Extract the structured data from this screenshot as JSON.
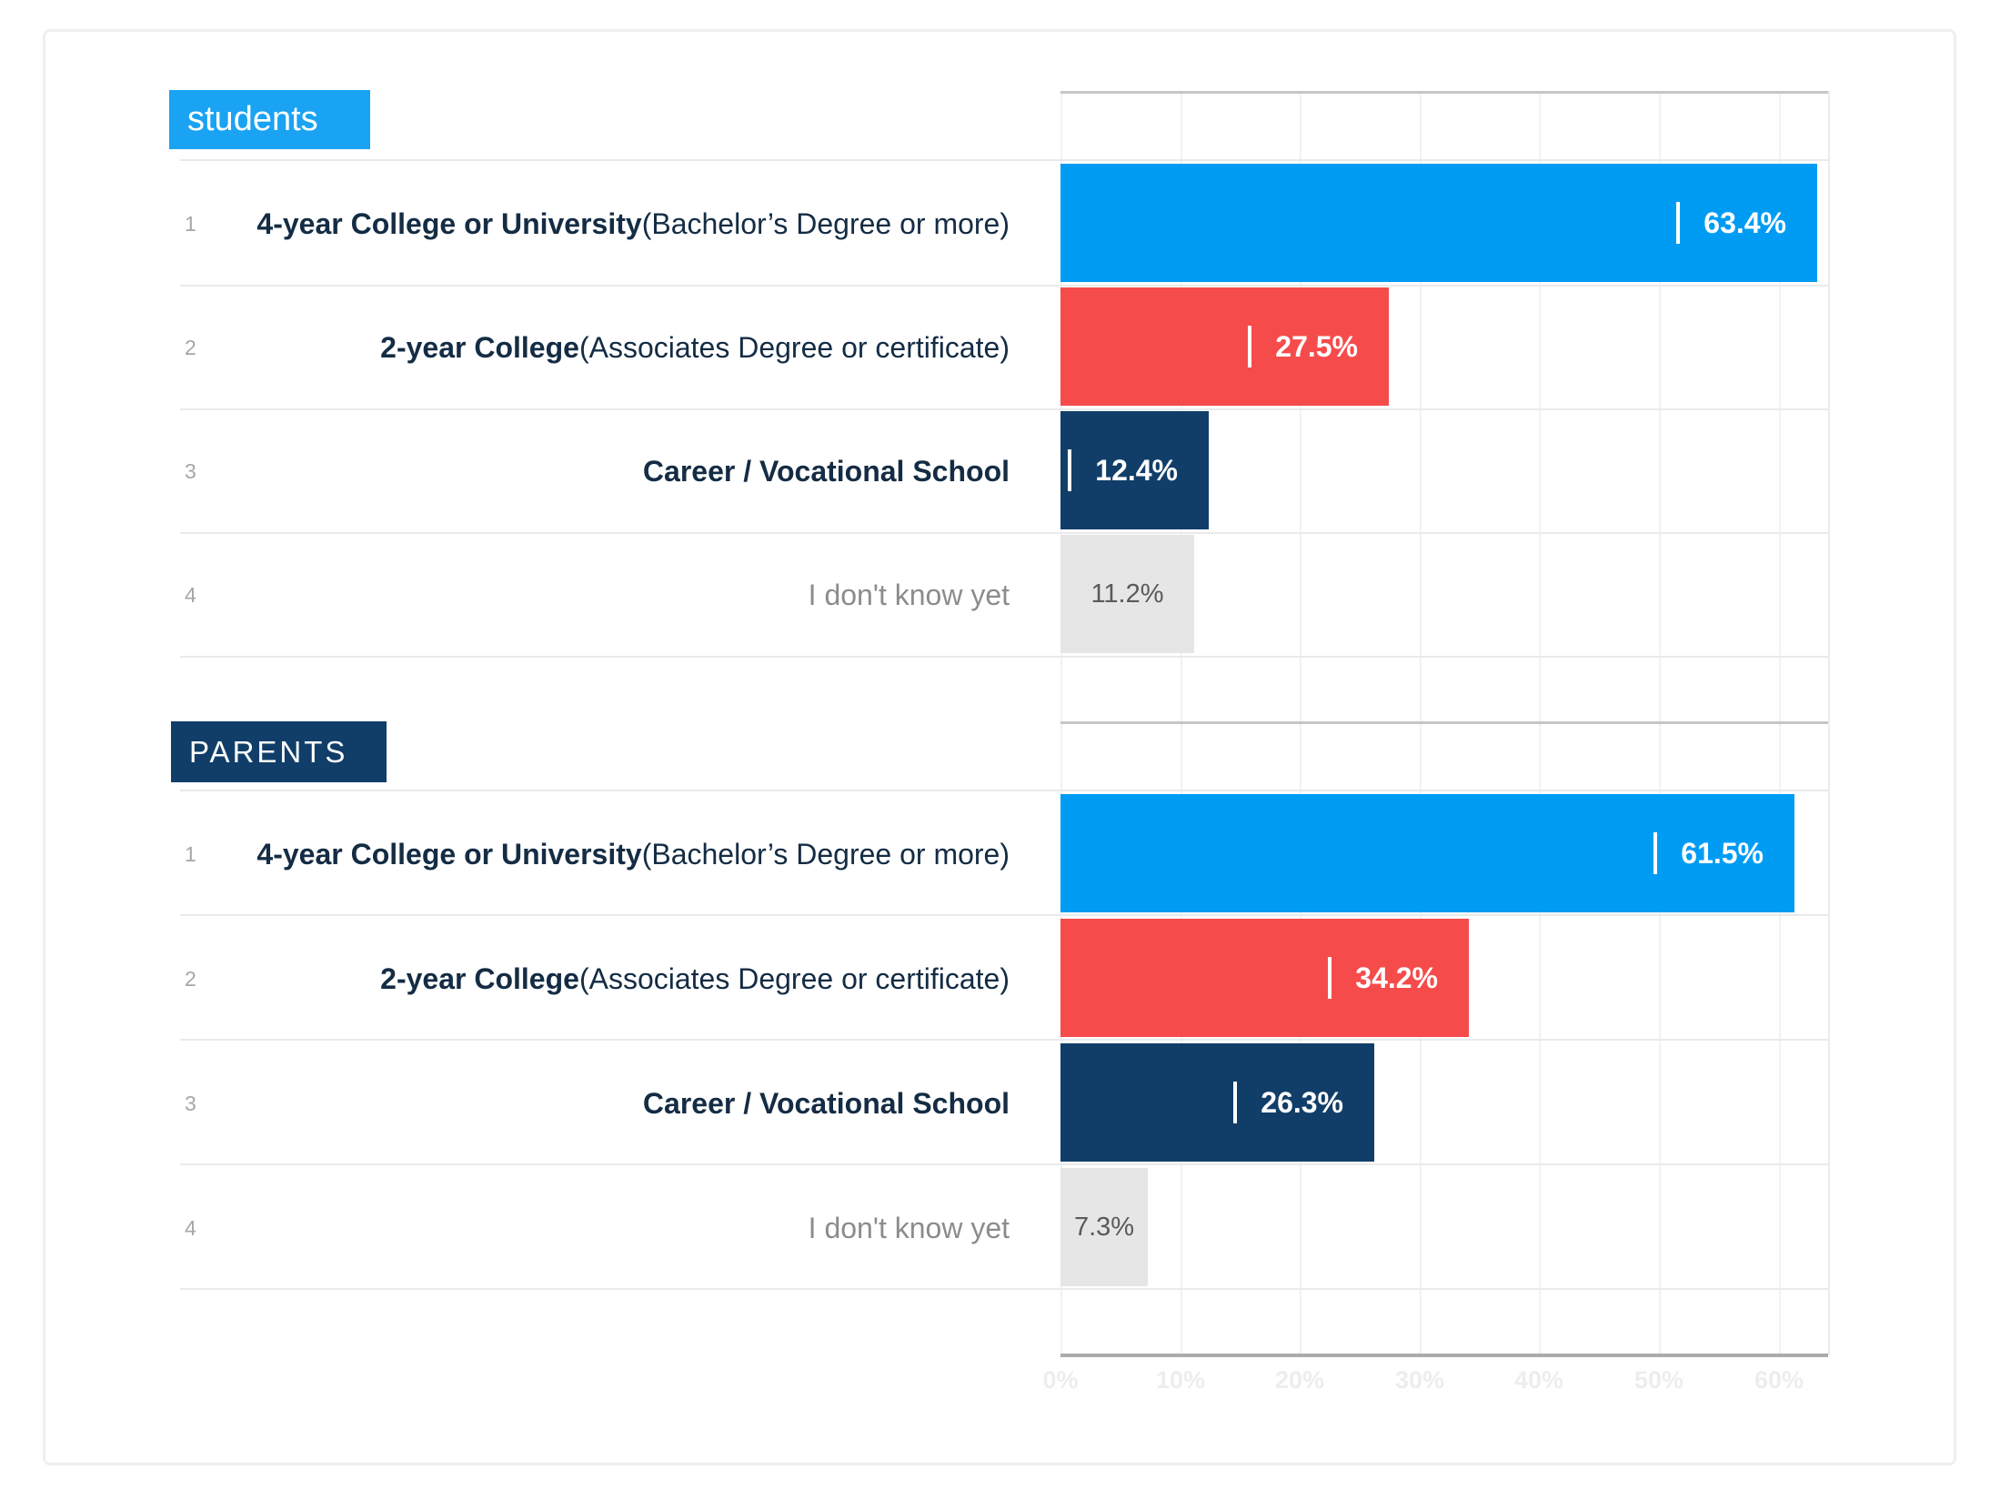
{
  "sections": [
    {
      "header": "students",
      "header_bg": "#1aa3f2",
      "rows": [
        {
          "num": "1",
          "bold": "4-year College or University",
          "rest": " (Bachelor’s Degree or more)",
          "value": 63.4,
          "value_label": "63.4%",
          "color": "#009cf4",
          "muted": false
        },
        {
          "num": "2",
          "bold": "2-year College",
          "rest": " (Associates Degree or certificate)",
          "value": 27.5,
          "value_label": "27.5%",
          "color": "#f64b4b",
          "muted": false
        },
        {
          "num": "3",
          "bold": "Career / Vocational School",
          "rest": "",
          "value": 12.4,
          "value_label": "12.4%",
          "color": "#113e68",
          "muted": false
        },
        {
          "num": "4",
          "bold": "",
          "rest": "I don't know yet",
          "value": 11.2,
          "value_label": "11.2%",
          "color": "#e6e6e6",
          "muted": true
        }
      ]
    },
    {
      "header": "PARENTS",
      "header_bg": "#113e68",
      "rows": [
        {
          "num": "1",
          "bold": "4-year College or University",
          "rest": " (Bachelor’s Degree or more)",
          "value": 61.5,
          "value_label": "61.5%",
          "color": "#009cf4",
          "muted": false
        },
        {
          "num": "2",
          "bold": "2-year College",
          "rest": " (Associates Degree or certificate)",
          "value": 34.2,
          "value_label": "34.2%",
          "color": "#f64b4b",
          "muted": false
        },
        {
          "num": "3",
          "bold": "Career / Vocational School",
          "rest": "",
          "value": 26.3,
          "value_label": "26.3%",
          "color": "#113e68",
          "muted": false
        },
        {
          "num": "4",
          "bold": "",
          "rest": "I don't know yet",
          "value": 7.3,
          "value_label": "7.3%",
          "color": "#e6e6e6",
          "muted": true
        }
      ]
    }
  ],
  "axis": {
    "ticks": [
      "0%",
      "10%",
      "20%",
      "30%",
      "40%",
      "50%",
      "60%"
    ]
  },
  "colors": {
    "blue": "#009cf4",
    "header_blue": "#1aa3f2",
    "red": "#f64b4b",
    "navy": "#113e68",
    "grey_bar": "#e6e6e6",
    "label_dark": "#142c44",
    "label_muted": "#8c8c8c",
    "grey_value_text": "#5a5a5a"
  },
  "chart_data": [
    {
      "type": "bar",
      "orientation": "horizontal",
      "title": "students",
      "categories": [
        "4-year College or University (Bachelor’s Degree or more)",
        "2-year College (Associates Degree or certificate)",
        "Career / Vocational School",
        "I don't know yet"
      ],
      "values": [
        63.4,
        27.5,
        12.4,
        11.2
      ],
      "value_labels": [
        "63.4%",
        "27.5%",
        "12.4%",
        "11.2%"
      ],
      "bar_colors": [
        "#009cf4",
        "#f64b4b",
        "#113e68",
        "#e6e6e6"
      ],
      "xlabel": "",
      "ylabel": "",
      "xlim": [
        0,
        64
      ],
      "x_ticks": [
        "0%",
        "10%",
        "20%",
        "30%",
        "40%",
        "50%",
        "60%"
      ],
      "grid": true,
      "legend": false
    },
    {
      "type": "bar",
      "orientation": "horizontal",
      "title": "PARENTS",
      "categories": [
        "4-year College or University (Bachelor’s Degree or more)",
        "2-year College (Associates Degree or certificate)",
        "Career / Vocational School",
        "I don't know yet"
      ],
      "values": [
        61.5,
        34.2,
        26.3,
        7.3
      ],
      "value_labels": [
        "61.5%",
        "34.2%",
        "26.3%",
        "7.3%"
      ],
      "bar_colors": [
        "#009cf4",
        "#f64b4b",
        "#113e68",
        "#e6e6e6"
      ],
      "xlabel": "",
      "ylabel": "",
      "xlim": [
        0,
        64
      ],
      "x_ticks": [
        "0%",
        "10%",
        "20%",
        "30%",
        "40%",
        "50%",
        "60%"
      ],
      "grid": true,
      "legend": false
    }
  ]
}
